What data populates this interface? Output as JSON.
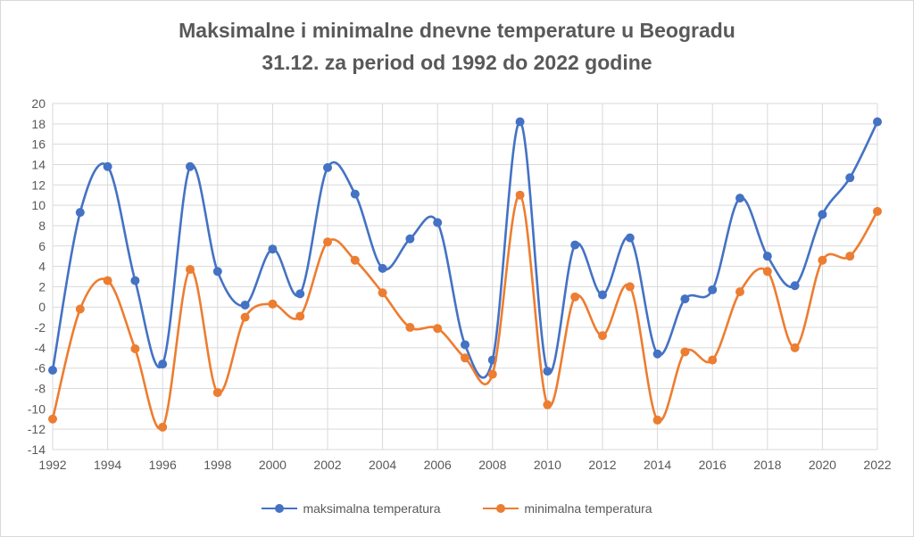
{
  "chart_data": {
    "type": "line",
    "title_line1": "Maksimalne i minimalne dnevne temperature u Beogradu",
    "title_line2": "31.12. za period od 1992 do 2022 godine",
    "x": [
      1992,
      1993,
      1994,
      1995,
      1996,
      1997,
      1998,
      1999,
      2000,
      2001,
      2002,
      2003,
      2004,
      2005,
      2006,
      2007,
      2008,
      2009,
      2010,
      2011,
      2012,
      2013,
      2014,
      2015,
      2016,
      2017,
      2018,
      2019,
      2020,
      2021,
      2022
    ],
    "xticks": [
      "1992",
      "1994",
      "1996",
      "1998",
      "2000",
      "2002",
      "2004",
      "2006",
      "2008",
      "2010",
      "2012",
      "2014",
      "2016",
      "2018",
      "2020",
      "2022"
    ],
    "yticks": [
      "20",
      "18",
      "16",
      "14",
      "12",
      "10",
      "8",
      "6",
      "4",
      "2",
      "0",
      "-2",
      "-4",
      "-6",
      "-8",
      "-10",
      "-12",
      "-14"
    ],
    "ylim": [
      -14,
      20
    ],
    "series": [
      {
        "name": "maksimalna temperatura",
        "color": "#4472c4",
        "values": [
          -6.2,
          9.3,
          13.8,
          2.6,
          -5.6,
          13.8,
          3.5,
          0.2,
          5.7,
          1.3,
          13.7,
          11.1,
          3.8,
          6.7,
          8.3,
          -3.7,
          -5.2,
          18.2,
          -6.3,
          6.1,
          1.2,
          6.8,
          -4.6,
          0.8,
          1.7,
          10.7,
          5.0,
          2.1,
          9.1,
          12.7,
          18.2
        ]
      },
      {
        "name": "minimalna temperatura",
        "color": "#ed7d31",
        "values": [
          -11.0,
          -0.2,
          2.6,
          -4.1,
          -11.8,
          3.7,
          -8.4,
          -1.0,
          0.3,
          -0.9,
          6.4,
          4.6,
          1.4,
          -2.0,
          -2.1,
          -5.0,
          -6.6,
          11.0,
          -9.6,
          1.0,
          -2.8,
          2.0,
          -11.1,
          -4.4,
          -5.2,
          1.5,
          3.5,
          -4.0,
          4.6,
          5.0,
          9.4
        ]
      }
    ],
    "grid": true,
    "legend": "bottom"
  }
}
